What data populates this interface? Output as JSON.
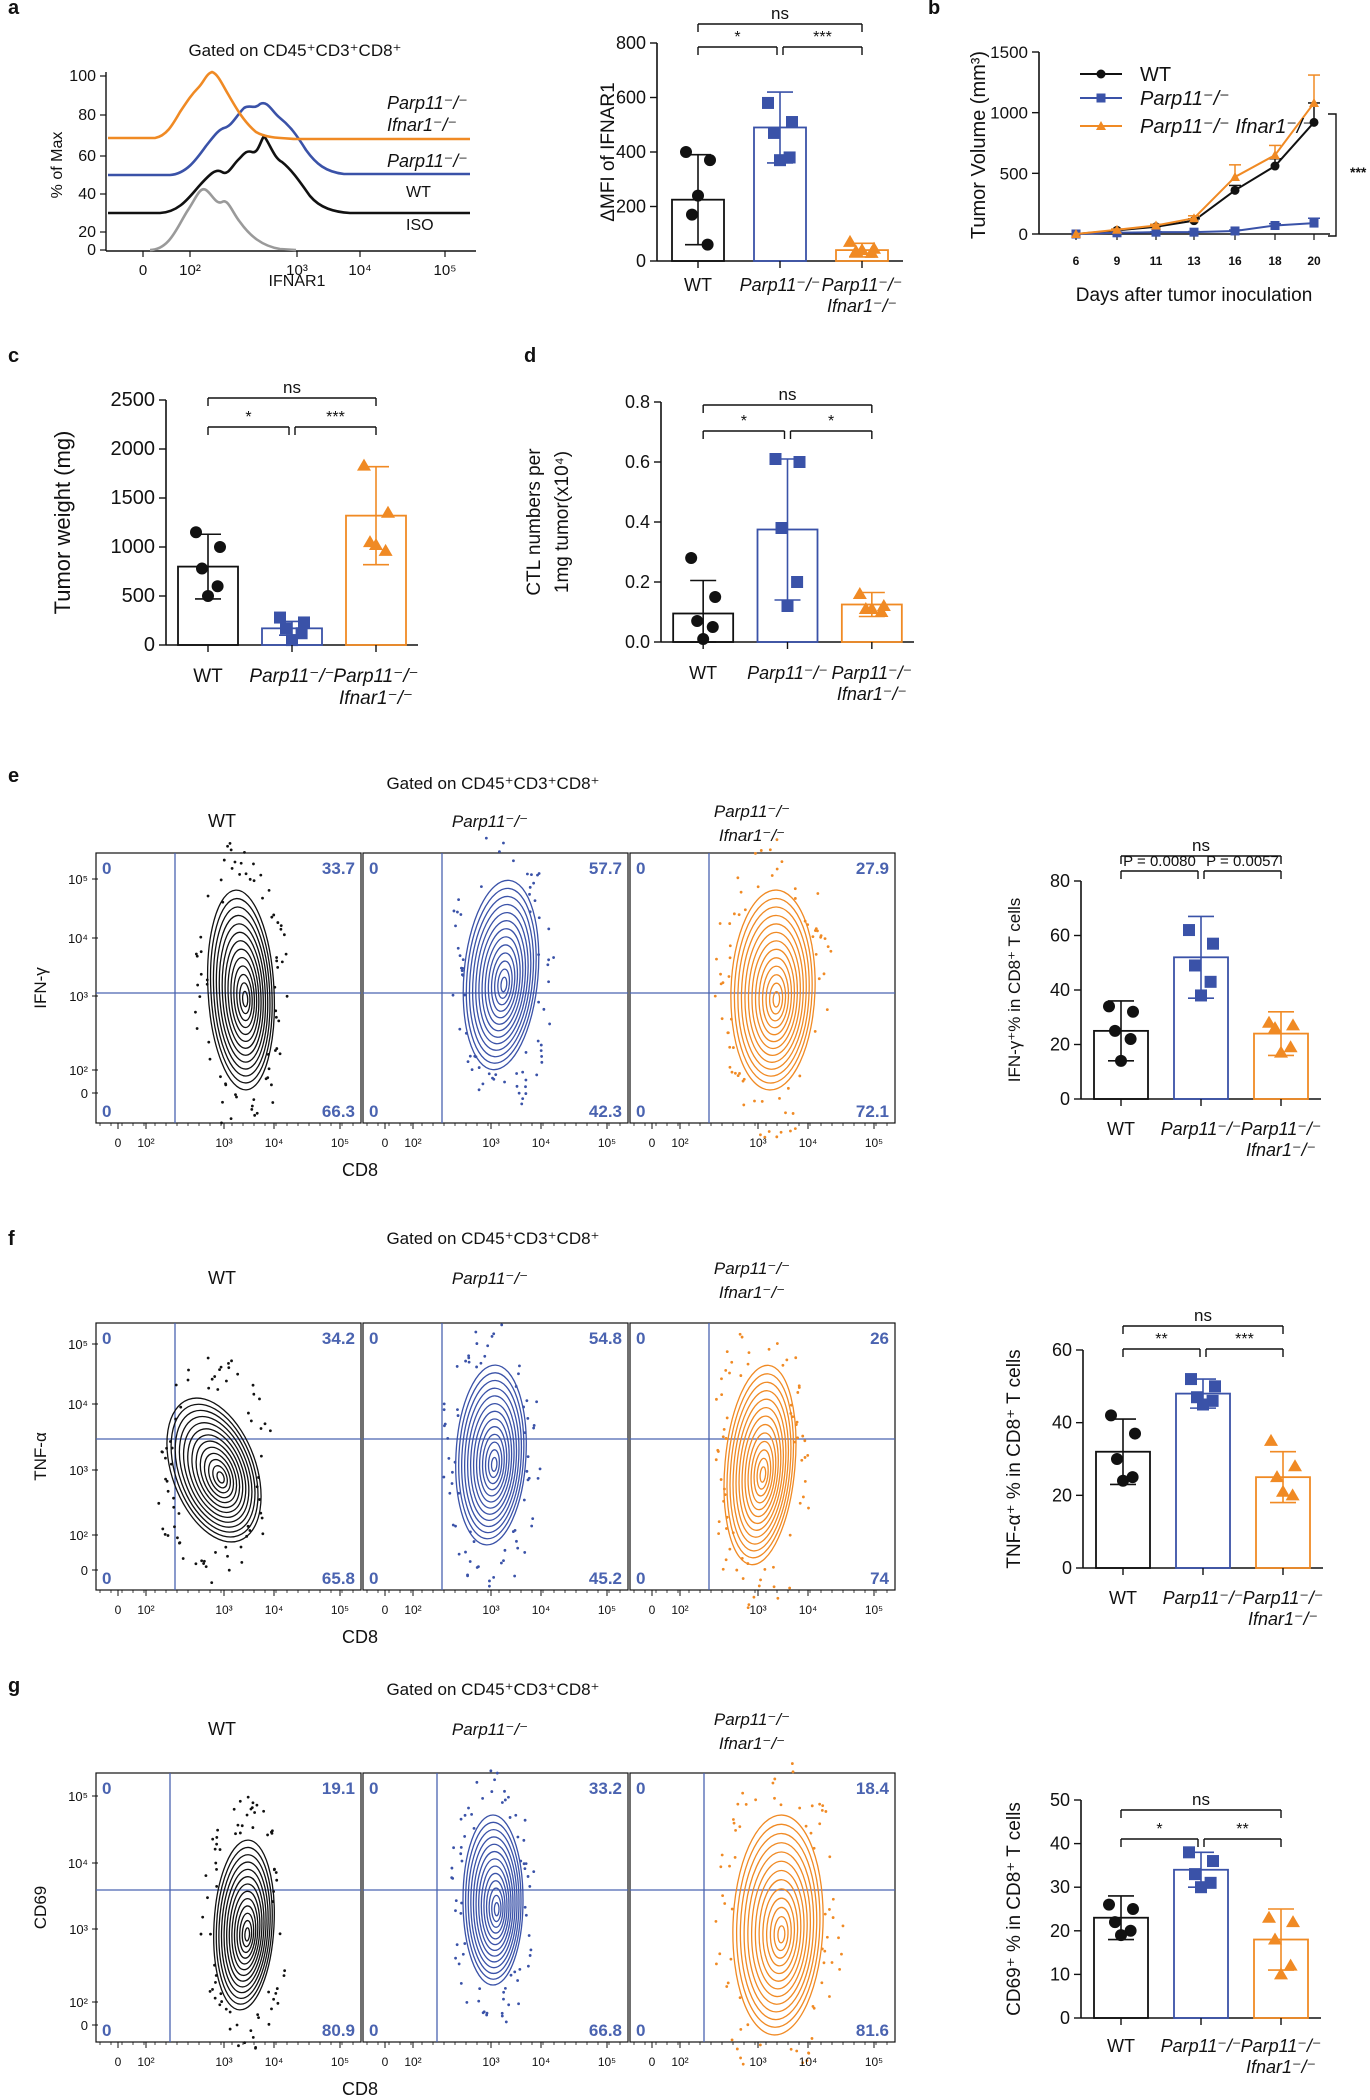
{
  "colors": {
    "wt": "#111111",
    "parp": "#3a52a8",
    "dko": "#f08a24",
    "iso": "#9a9a9a",
    "quad": "#4a63b0"
  },
  "panel_labels": [
    "a",
    "b",
    "c",
    "d",
    "e",
    "f",
    "g"
  ],
  "gate": "Gated on CD45⁺CD3⁺CD8⁺",
  "groups": {
    "wt": "WT",
    "parp": "Parp11⁻/⁻",
    "ifnar": "Ifnar1⁻/⁻",
    "dko": "Parp11⁻/⁻ Ifnar1⁻/⁻"
  },
  "chart_data": [
    {
      "id": "a_hist",
      "type": "histogram",
      "title": "Gated on CD45⁺CD3⁺CD8⁺",
      "xlabel": "IFNAR1",
      "ylabel": "% of Max",
      "xticks": [
        "0",
        "10²",
        "10³",
        "10⁴",
        "10⁵"
      ],
      "yticks": [
        0,
        20,
        40,
        60,
        80,
        100
      ],
      "series": [
        "ISO",
        "WT",
        "Parp11⁻/⁻",
        "Parp11⁻/⁻ Ifnar1⁻/⁻"
      ],
      "peak_values": {
        "ISO": 250,
        "WT": 320,
        "Parp11⁻/⁻": 330,
        "Parp11⁻/⁻ Ifnar1⁻/⁻": 220
      }
    },
    {
      "id": "a_bar",
      "type": "bar",
      "ylabel": "ΔMFI of IFNAR1",
      "ylim": [
        0,
        800
      ],
      "yticks": [
        0,
        200,
        400,
        600,
        800
      ],
      "means": [
        225,
        490,
        40
      ],
      "errors": [
        165,
        130,
        25
      ],
      "points": [
        [
          400,
          370,
          170,
          60,
          240
        ],
        [
          580,
          510,
          470,
          380,
          370
        ],
        [
          70,
          45,
          35,
          30,
          40
        ]
      ],
      "comparisons": [
        {
          "pair": [
            0,
            1
          ],
          "label": "*"
        },
        {
          "pair": [
            1,
            2
          ],
          "label": "***"
        },
        {
          "pair": [
            0,
            2
          ],
          "label": "ns"
        }
      ]
    },
    {
      "id": "b",
      "type": "line",
      "xlabel": "Days after tumor inoculation",
      "ylabel": "Tumor Volume (mm³)",
      "ylim": [
        0,
        1500
      ],
      "yticks": [
        0,
        500,
        1000,
        1500
      ],
      "x": [
        6,
        9,
        11,
        13,
        16,
        18,
        20
      ],
      "series": [
        {
          "name": "WT",
          "values": [
            0,
            30,
            60,
            110,
            360,
            560,
            920
          ],
          "errors": [
            0,
            5,
            8,
            15,
            40,
            60,
            160
          ]
        },
        {
          "name": "Parp11⁻/⁻",
          "values": [
            0,
            10,
            15,
            15,
            25,
            70,
            90
          ],
          "errors": [
            0,
            3,
            3,
            5,
            8,
            15,
            40
          ]
        },
        {
          "name": "Parp11⁻/⁻ Ifnar1⁻/⁻",
          "values": [
            0,
            35,
            70,
            130,
            470,
            650,
            1080
          ],
          "errors": [
            0,
            6,
            10,
            20,
            100,
            80,
            230
          ]
        }
      ],
      "significance": "***"
    },
    {
      "id": "c",
      "type": "bar",
      "ylabel": "Tumor weight (mg)",
      "ylim": [
        0,
        2500
      ],
      "yticks": [
        0,
        500,
        1000,
        1500,
        2000,
        2500
      ],
      "means": [
        800,
        170,
        1320
      ],
      "errors": [
        330,
        70,
        500
      ],
      "points": [
        [
          1150,
          1000,
          780,
          600,
          500
        ],
        [
          280,
          230,
          170,
          120,
          50
        ],
        [
          1830,
          1350,
          1050,
          960,
          1020
        ]
      ],
      "comparisons": [
        {
          "pair": [
            0,
            1
          ],
          "label": "*"
        },
        {
          "pair": [
            1,
            2
          ],
          "label": "***"
        },
        {
          "pair": [
            0,
            2
          ],
          "label": "ns"
        }
      ]
    },
    {
      "id": "d",
      "type": "bar",
      "ylabel": "CTL numbers per 1mg tumor(x10⁴)",
      "ylim": [
        0,
        0.8
      ],
      "yticks": [
        "0.0",
        "0.2",
        "0.4",
        "0.6",
        "0.8"
      ],
      "means": [
        0.095,
        0.375,
        0.125
      ],
      "errors": [
        0.11,
        0.235,
        0.04
      ],
      "points": [
        [
          0.28,
          0.15,
          0.07,
          0.05,
          0.01
        ],
        [
          0.61,
          0.6,
          0.38,
          0.2,
          0.12
        ],
        [
          0.16,
          0.12,
          0.11,
          0.1,
          0.11
        ]
      ],
      "comparisons": [
        {
          "pair": [
            0,
            1
          ],
          "label": "*"
        },
        {
          "pair": [
            1,
            2
          ],
          "label": "*"
        },
        {
          "pair": [
            0,
            2
          ],
          "label": "ns"
        }
      ]
    },
    {
      "id": "e_flow",
      "type": "contour",
      "xlabel": "CD8",
      "ylabel": "IFN-γ",
      "quadrants": [
        [
          "0",
          "33.7",
          "0",
          "66.3"
        ],
        [
          "0",
          "57.7",
          "0",
          "42.3"
        ],
        [
          "0",
          "27.9",
          "0",
          "72.1"
        ]
      ]
    },
    {
      "id": "e_bar",
      "type": "bar",
      "ylabel": "IFN-γ⁺% in CD8⁺ T cells",
      "ylim": [
        0,
        80
      ],
      "yticks": [
        0,
        20,
        40,
        60,
        80
      ],
      "means": [
        25,
        52,
        24
      ],
      "errors": [
        11,
        15,
        8
      ],
      "points": [
        [
          34,
          32,
          25,
          22,
          14
        ],
        [
          62,
          57,
          49,
          43,
          38
        ],
        [
          28,
          27,
          26,
          19,
          17
        ]
      ],
      "comparisons": [
        {
          "pair": [
            0,
            1
          ],
          "label": "P = 0.0080"
        },
        {
          "pair": [
            1,
            2
          ],
          "label": "P = 0.0057"
        },
        {
          "pair": [
            0,
            2
          ],
          "label": "ns"
        }
      ]
    },
    {
      "id": "f_flow",
      "type": "contour",
      "xlabel": "CD8",
      "ylabel": "TNF-α",
      "quadrants": [
        [
          "0",
          "34.2",
          "0",
          "65.8"
        ],
        [
          "0",
          "54.8",
          "0",
          "45.2"
        ],
        [
          "0",
          "26",
          "0",
          "74"
        ]
      ]
    },
    {
      "id": "f_bar",
      "type": "bar",
      "ylabel": "TNF-α⁺ % in CD8⁺ T cells",
      "ylim": [
        0,
        60
      ],
      "yticks": [
        0,
        20,
        40,
        60
      ],
      "means": [
        32,
        48,
        25
      ],
      "errors": [
        9,
        4,
        7
      ],
      "points": [
        [
          42,
          37,
          30,
          25,
          24
        ],
        [
          52,
          50,
          47,
          46,
          45
        ],
        [
          35,
          28,
          25,
          20,
          21
        ]
      ],
      "comparisons": [
        {
          "pair": [
            0,
            1
          ],
          "label": "**"
        },
        {
          "pair": [
            1,
            2
          ],
          "label": "***"
        },
        {
          "pair": [
            0,
            2
          ],
          "label": "ns"
        }
      ]
    },
    {
      "id": "g_flow",
      "type": "contour",
      "xlabel": "CD8",
      "ylabel": "CD69",
      "quadrants": [
        [
          "0",
          "19.1",
          "0",
          "80.9"
        ],
        [
          "0",
          "33.2",
          "0",
          "66.8"
        ],
        [
          "0",
          "18.4",
          "0",
          "81.6"
        ]
      ]
    },
    {
      "id": "g_bar",
      "type": "bar",
      "ylabel": "CD69⁺ % in CD8⁺ T cells",
      "ylim": [
        0,
        50
      ],
      "yticks": [
        0,
        10,
        20,
        30,
        40,
        50
      ],
      "means": [
        23,
        34,
        18
      ],
      "errors": [
        5,
        4,
        7
      ],
      "points": [
        [
          26,
          25,
          22,
          20,
          19
        ],
        [
          38,
          36,
          33,
          31,
          30
        ],
        [
          23,
          22,
          18,
          12,
          10
        ]
      ],
      "comparisons": [
        {
          "pair": [
            0,
            1
          ],
          "label": "*"
        },
        {
          "pair": [
            1,
            2
          ],
          "label": "**"
        },
        {
          "pair": [
            0,
            2
          ],
          "label": "ns"
        }
      ]
    }
  ],
  "flow_axis": {
    "xticks": [
      "0",
      "10²",
      "10³",
      "10⁴",
      "10⁵"
    ],
    "yticks": [
      "10⁵",
      "10⁴",
      "10³",
      "10²",
      "0"
    ]
  }
}
